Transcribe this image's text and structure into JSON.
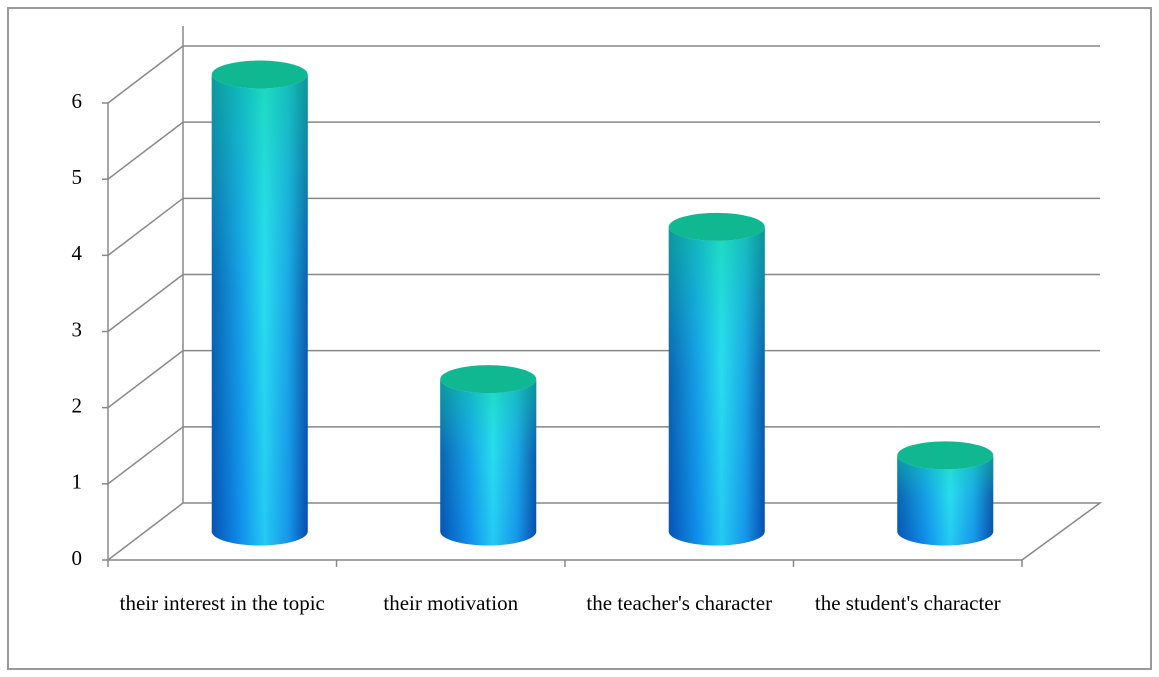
{
  "chart_data": {
    "type": "bar3d-cylinder",
    "categories": [
      "their interest in the topic",
      "their motivation",
      "the teacher's character",
      "the student's character"
    ],
    "values": [
      6,
      2,
      4,
      1
    ],
    "ylim": [
      0,
      6
    ],
    "yticks": [
      0,
      1,
      2,
      3,
      4,
      5,
      6
    ],
    "grid": true
  }
}
